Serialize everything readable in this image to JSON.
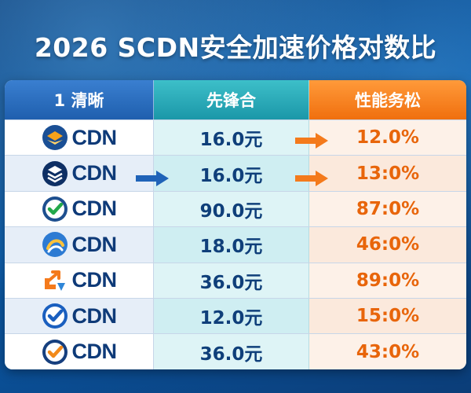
{
  "title": "2026 SCDN安全加速价格对数比",
  "headers": [
    "1 清晰",
    "先锋合",
    "性能务松"
  ],
  "rows": [
    {
      "provider": "CDN",
      "logo": "orange-blue-layers-icon",
      "price": "16.0元",
      "perf": "12.0%"
    },
    {
      "provider": "CDN",
      "logo": "navy-stack-icon",
      "price": "16.0元",
      "perf": "13:0%"
    },
    {
      "provider": "CDN",
      "logo": "green-check-icon",
      "price": "90.0元",
      "perf": "87:0%"
    },
    {
      "provider": "CDN",
      "logo": "blue-swirl-icon",
      "price": "18.0元",
      "perf": "46:0%"
    },
    {
      "provider": "CDN",
      "logo": "orange-arrows-icon",
      "price": "36.0元",
      "perf": "89:0%"
    },
    {
      "provider": "CDN",
      "logo": "blue-check-icon",
      "price": "12.0元",
      "perf": "15:0%"
    },
    {
      "provider": "CDN",
      "logo": "orange-check-icon",
      "price": "36.0元",
      "perf": "43:0%"
    }
  ],
  "colors": {
    "header_col1": "#1f5fae",
    "header_col2": "#1b97a8",
    "header_col3": "#f06f0e",
    "price_text": "#0f3f7a",
    "perf_text": "#e8650a"
  }
}
